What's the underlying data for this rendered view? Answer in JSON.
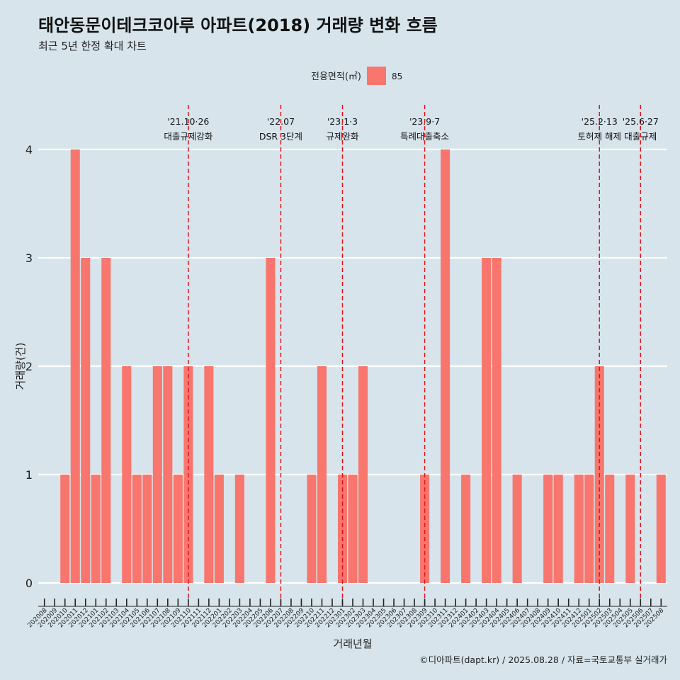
{
  "chart_data": {
    "type": "bar",
    "title": "태안동문이테크코아루 아파트(2018) 거래량 변화 흐름",
    "subtitle": "최근 5년 한정 확대 차트",
    "xlabel": "거래년월",
    "ylabel": "거래량(건)",
    "caption": "©디아파트(dapt.kr) / 2025.08.28 / 자료=국토교통부 실거래가",
    "legend": {
      "title": "전용면적(㎡)",
      "position": "top",
      "entries": [
        {
          "label": "85",
          "color": "#f8766d"
        }
      ]
    },
    "ylim": [
      0,
      4
    ],
    "y_ticks": [
      "0",
      "1",
      "2",
      "3",
      "4"
    ],
    "grid": true,
    "categories": [
      "202008",
      "202009",
      "202010",
      "202011",
      "202012",
      "202101",
      "202102",
      "202103",
      "202104",
      "202105",
      "202106",
      "202107",
      "202108",
      "202109",
      "202110",
      "202111",
      "202112",
      "202201",
      "202202",
      "202203",
      "202204",
      "202205",
      "202206",
      "202207",
      "202208",
      "202209",
      "202210",
      "202211",
      "202212",
      "202301",
      "202302",
      "202303",
      "202304",
      "202305",
      "202306",
      "202307",
      "202308",
      "202309",
      "202310",
      "202311",
      "202312",
      "202401",
      "202402",
      "202403",
      "202404",
      "202405",
      "202406",
      "202407",
      "202408",
      "202409",
      "202410",
      "202411",
      "202412",
      "202501",
      "202502",
      "202503",
      "202504",
      "202505",
      "202506",
      "202507",
      "202508"
    ],
    "series": [
      {
        "name": "85",
        "color": "#f8766d",
        "values": [
          0,
          0,
          1,
          4,
          3,
          1,
          3,
          0,
          2,
          1,
          1,
          2,
          2,
          1,
          2,
          0,
          2,
          1,
          0,
          1,
          0,
          0,
          3,
          0,
          0,
          0,
          1,
          2,
          0,
          1,
          1,
          2,
          0,
          0,
          0,
          0,
          0,
          1,
          0,
          4,
          0,
          1,
          0,
          3,
          3,
          0,
          1,
          0,
          0,
          1,
          1,
          0,
          1,
          1,
          2,
          1,
          0,
          1,
          0,
          0,
          1
        ]
      }
    ],
    "annotations": [
      {
        "date": "202110",
        "line1": "'21.10·26",
        "line2": "대출규제강화"
      },
      {
        "date": "202207",
        "line1": "'22.07",
        "line2": "DSR 3단계"
      },
      {
        "date": "202301",
        "line1": "'23.1·3",
        "line2": "규제완화"
      },
      {
        "date": "202309",
        "line1": "'23.9·7",
        "line2": "특례대출축소"
      },
      {
        "date": "202502",
        "line1": "'25.2·13",
        "line2": "토허제 해제"
      },
      {
        "date": "202506",
        "line1": "'25.6·27",
        "line2": "대출규제"
      }
    ]
  }
}
